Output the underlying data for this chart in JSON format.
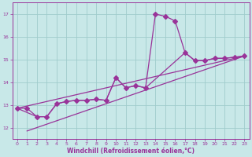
{
  "xlabel": "Windchill (Refroidissement éolien,°C)",
  "xlim": [
    -0.5,
    23.5
  ],
  "ylim": [
    11.5,
    17.5
  ],
  "yticks": [
    12,
    13,
    14,
    15,
    16,
    17
  ],
  "xticks": [
    0,
    1,
    2,
    3,
    4,
    5,
    6,
    7,
    8,
    9,
    10,
    11,
    12,
    13,
    14,
    15,
    16,
    17,
    18,
    19,
    20,
    21,
    22,
    23
  ],
  "color": "#993399",
  "bg_color": "#c8e8e8",
  "grid_color": "#a0cccc",
  "main_x": [
    0,
    1,
    2,
    3,
    4,
    5,
    6,
    7,
    8,
    9,
    10,
    11,
    12,
    13,
    14,
    15,
    16,
    17,
    18,
    19,
    20,
    21,
    22,
    23
  ],
  "main_y": [
    12.85,
    12.85,
    12.48,
    12.48,
    13.05,
    13.15,
    13.2,
    13.2,
    13.25,
    13.2,
    14.2,
    13.75,
    13.85,
    13.75,
    17.0,
    16.9,
    16.7,
    15.3,
    14.95,
    14.95,
    15.05,
    15.05,
    15.1,
    15.15
  ],
  "trend1_x": [
    0,
    2,
    3,
    4,
    5,
    6,
    7,
    8,
    9,
    10,
    11,
    12,
    13,
    17,
    18,
    19,
    20,
    21,
    22,
    23
  ],
  "trend1_y": [
    12.85,
    12.48,
    12.48,
    13.05,
    13.15,
    13.2,
    13.2,
    13.25,
    13.2,
    14.2,
    13.75,
    13.85,
    13.75,
    15.3,
    14.95,
    14.95,
    15.05,
    15.05,
    15.1,
    15.15
  ],
  "trend2_x": [
    0,
    23
  ],
  "trend2_y": [
    12.85,
    15.15
  ],
  "trend3_x": [
    1,
    23
  ],
  "trend3_y": [
    11.85,
    15.15
  ]
}
